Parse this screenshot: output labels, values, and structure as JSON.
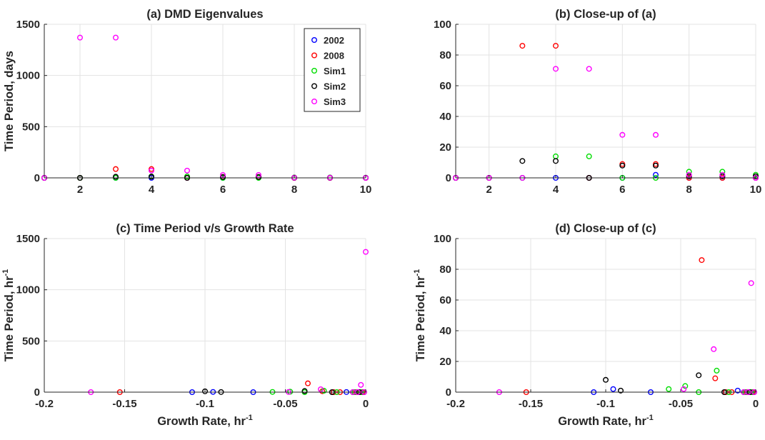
{
  "figure": {
    "colors": {
      "2002": "#0000ff",
      "2008": "#ff0000",
      "Sim1": "#00dd00",
      "Sim2": "#000000",
      "Sim3": "#ff00ff"
    }
  },
  "chart_data": [
    {
      "id": "a",
      "type": "scatter",
      "title": "(a) DMD Eigenvalues",
      "xlabel": "",
      "ylabel": "Time Period, days",
      "xlim": [
        1,
        10
      ],
      "ylim": [
        0,
        1500
      ],
      "xticks": [
        "2",
        "4",
        "6",
        "8",
        "10"
      ],
      "xtick_values": [
        2,
        4,
        6,
        8,
        10
      ],
      "yticks": [
        "0",
        "500",
        "1000",
        "1500"
      ],
      "ytick_values": [
        0,
        500,
        1000,
        1500
      ],
      "grid": true,
      "legend": "top-right",
      "series": [
        {
          "name": "2002",
          "x": [
            1,
            2,
            3,
            4,
            5,
            6,
            7,
            8,
            9,
            10
          ],
          "y": [
            0,
            0,
            0,
            0,
            0,
            0,
            2,
            0,
            0,
            0
          ]
        },
        {
          "name": "2008",
          "x": [
            1,
            2,
            3,
            4,
            5,
            6,
            7,
            8,
            9,
            10
          ],
          "y": [
            0,
            0,
            86,
            86,
            0,
            9,
            9,
            0,
            0,
            0
          ]
        },
        {
          "name": "Sim1",
          "x": [
            1,
            2,
            3,
            4,
            5,
            6,
            7,
            8,
            9,
            10
          ],
          "y": [
            0,
            0,
            0,
            14,
            14,
            0,
            0,
            4,
            4,
            2
          ]
        },
        {
          "name": "Sim2",
          "x": [
            1,
            2,
            3,
            4,
            5,
            6,
            7,
            8,
            9,
            10
          ],
          "y": [
            0,
            0,
            11,
            11,
            0,
            8,
            8,
            1,
            1,
            1
          ]
        },
        {
          "name": "Sim3",
          "x": [
            1,
            2,
            3,
            4,
            5,
            6,
            7,
            8,
            9,
            10
          ],
          "y": [
            0,
            1370,
            1370,
            71,
            71,
            28,
            28,
            2,
            2,
            0
          ]
        }
      ]
    },
    {
      "id": "b",
      "type": "scatter",
      "title": "(b) Close-up of (a)",
      "xlabel": "",
      "ylabel": "",
      "xlim": [
        1,
        10
      ],
      "ylim": [
        0,
        100
      ],
      "xticks": [
        "2",
        "4",
        "6",
        "8",
        "10"
      ],
      "xtick_values": [
        2,
        4,
        6,
        8,
        10
      ],
      "yticks": [
        "0",
        "20",
        "40",
        "60",
        "80",
        "100"
      ],
      "ytick_values": [
        0,
        20,
        40,
        60,
        80,
        100
      ],
      "grid": true,
      "series": [
        {
          "name": "2002",
          "x": [
            1,
            2,
            3,
            4,
            5,
            6,
            7,
            8,
            9,
            10
          ],
          "y": [
            0,
            0,
            0,
            0,
            0,
            0,
            2,
            0,
            0,
            0
          ]
        },
        {
          "name": "2008",
          "x": [
            1,
            2,
            3,
            4,
            5,
            6,
            7,
            8,
            9,
            10
          ],
          "y": [
            0,
            0,
            86,
            86,
            0,
            9,
            9,
            0,
            0,
            0
          ]
        },
        {
          "name": "Sim1",
          "x": [
            1,
            2,
            3,
            4,
            5,
            6,
            7,
            8,
            9,
            10
          ],
          "y": [
            0,
            0,
            0,
            14,
            14,
            0,
            0,
            4,
            4,
            2
          ]
        },
        {
          "name": "Sim2",
          "x": [
            1,
            2,
            3,
            4,
            5,
            6,
            7,
            8,
            9,
            10
          ],
          "y": [
            0,
            0,
            11,
            11,
            0,
            8,
            8,
            1,
            1,
            1
          ]
        },
        {
          "name": "Sim3",
          "x": [
            1,
            2,
            3,
            4,
            5,
            6,
            7,
            8,
            9,
            10
          ],
          "y": [
            0,
            0,
            0,
            71,
            71,
            28,
            28,
            2,
            2,
            0
          ]
        }
      ]
    },
    {
      "id": "c",
      "type": "scatter",
      "title": "(c) Time Period v/s Growth Rate",
      "xlabel": "Growth Rate, hr",
      "xlabel_sup": "-1",
      "ylabel": "Time Period, hr",
      "ylabel_sup": "-1",
      "xlim": [
        -0.2,
        0
      ],
      "ylim": [
        0,
        1500
      ],
      "xticks": [
        "-0.2",
        "-0.15",
        "-0.1",
        "-0.05",
        "0"
      ],
      "xtick_values": [
        -0.2,
        -0.15,
        -0.1,
        -0.05,
        0
      ],
      "yticks": [
        "0",
        "500",
        "1000",
        "1500"
      ],
      "ytick_values": [
        0,
        500,
        1000,
        1500
      ],
      "grid": true,
      "series": [
        {
          "name": "2002",
          "x": [
            -0.108,
            -0.095,
            -0.07,
            -0.02,
            -0.012,
            -0.005,
            -0.002
          ],
          "y": [
            0,
            2,
            0,
            0,
            1,
            0,
            0
          ]
        },
        {
          "name": "2008",
          "x": [
            -0.153,
            -0.036,
            -0.027,
            -0.02,
            -0.016,
            -0.006,
            -0.002
          ],
          "y": [
            0,
            86,
            9,
            0,
            0,
            0,
            0
          ]
        },
        {
          "name": "Sim1",
          "x": [
            -0.058,
            -0.047,
            -0.038,
            -0.026,
            -0.018,
            -0.007,
            -0.003
          ],
          "y": [
            2,
            4,
            0,
            14,
            0,
            0,
            0
          ]
        },
        {
          "name": "Sim2",
          "x": [
            -0.1,
            -0.09,
            -0.038,
            -0.021,
            -0.008,
            -0.004,
            -0.001
          ],
          "y": [
            8,
            1,
            11,
            0,
            0,
            0,
            0
          ]
        },
        {
          "name": "Sim3",
          "x": [
            -0.171,
            -0.048,
            -0.028,
            -0.008,
            -0.005,
            -0.003,
            -0.001,
            0
          ],
          "y": [
            0,
            2,
            28,
            0,
            0,
            71,
            0,
            1370
          ]
        }
      ]
    },
    {
      "id": "d",
      "type": "scatter",
      "title": "(d) Close-up of (c)",
      "xlabel": "Growth Rate, hr",
      "xlabel_sup": "-1",
      "ylabel": "Time Period, hr",
      "ylabel_sup": "-1",
      "xlim": [
        -0.2,
        0
      ],
      "ylim": [
        0,
        100
      ],
      "xticks": [
        "-0.2",
        "-0.15",
        "-0.1",
        "-0.05",
        "0"
      ],
      "xtick_values": [
        -0.2,
        -0.15,
        -0.1,
        -0.05,
        0
      ],
      "yticks": [
        "0",
        "20",
        "40",
        "60",
        "80",
        "100"
      ],
      "ytick_values": [
        0,
        20,
        40,
        60,
        80,
        100
      ],
      "grid": true,
      "series": [
        {
          "name": "2002",
          "x": [
            -0.108,
            -0.095,
            -0.07,
            -0.02,
            -0.012,
            -0.005,
            -0.002
          ],
          "y": [
            0,
            2,
            0,
            0,
            1,
            0,
            0
          ]
        },
        {
          "name": "2008",
          "x": [
            -0.153,
            -0.036,
            -0.027,
            -0.02,
            -0.016,
            -0.006,
            -0.002
          ],
          "y": [
            0,
            86,
            9,
            0,
            0,
            0,
            0
          ]
        },
        {
          "name": "Sim1",
          "x": [
            -0.058,
            -0.047,
            -0.038,
            -0.026,
            -0.018,
            -0.007,
            -0.003
          ],
          "y": [
            2,
            4,
            0,
            14,
            0,
            0,
            0
          ]
        },
        {
          "name": "Sim2",
          "x": [
            -0.1,
            -0.09,
            -0.038,
            -0.021,
            -0.008,
            -0.004,
            -0.001
          ],
          "y": [
            8,
            1,
            11,
            0,
            0,
            0,
            0
          ]
        },
        {
          "name": "Sim3",
          "x": [
            -0.171,
            -0.048,
            -0.028,
            -0.008,
            -0.005,
            -0.003,
            -0.001
          ],
          "y": [
            0,
            2,
            28,
            0,
            0,
            71,
            0
          ]
        }
      ]
    }
  ]
}
